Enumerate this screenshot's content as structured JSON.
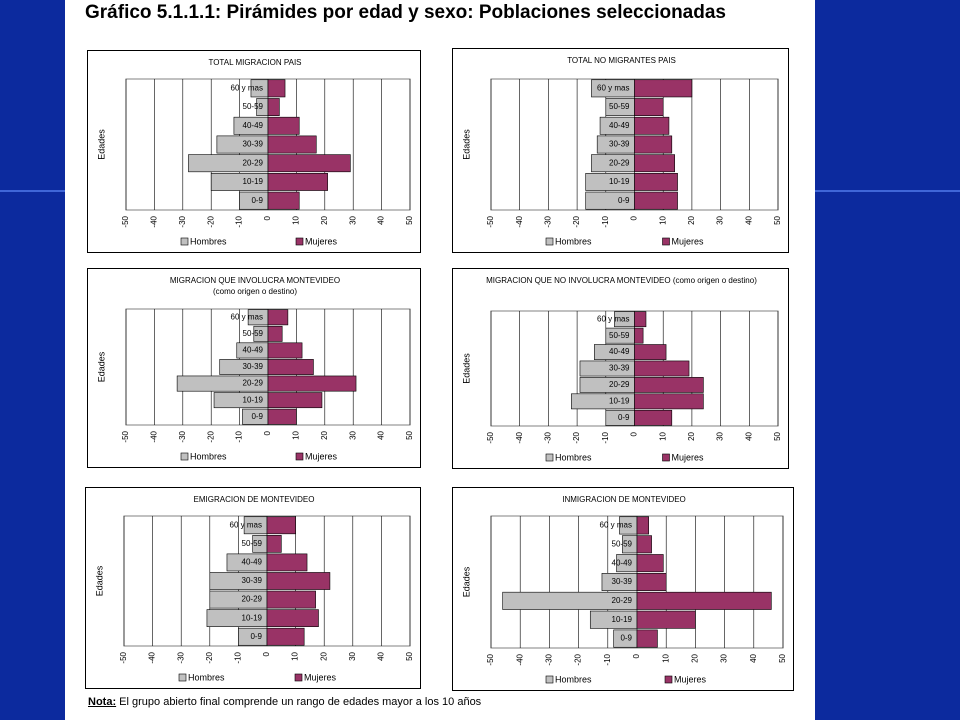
{
  "title": "Gráfico 5.1.1.1: Pirámides por edad y sexo: Poblaciones seleccionadas",
  "chart_data": [
    {
      "type": "bar",
      "orientation": "horizontal",
      "title": "TOTAL MIGRACION PAIS",
      "categories": [
        "0-9",
        "10-19",
        "20-29",
        "30-39",
        "40-49",
        "50-59",
        "60 y mas"
      ],
      "series": [
        {
          "name": "Hombres",
          "color": "#c0c0c0",
          "values": [
            -10,
            -20,
            -28,
            -18,
            -12,
            -4,
            -6
          ]
        },
        {
          "name": "Mujeres",
          "color": "#993366",
          "values": [
            11,
            21,
            29,
            17,
            11,
            4,
            6
          ]
        }
      ],
      "xlim": [
        -50,
        50
      ],
      "xticks": [
        -50,
        -40,
        -30,
        -20,
        -10,
        0,
        10,
        20,
        30,
        40,
        50
      ],
      "ylabel": "Edades",
      "grid": true,
      "legend": "bottom"
    },
    {
      "type": "bar",
      "orientation": "horizontal",
      "title": "TOTAL NO MIGRANTES PAIS",
      "categories": [
        "0-9",
        "10-19",
        "20-29",
        "30-39",
        "40-49",
        "50-59",
        "60 y mas"
      ],
      "series": [
        {
          "name": "Hombres",
          "color": "#c0c0c0",
          "values": [
            -17,
            -17,
            -15,
            -13,
            -12,
            -10,
            -15
          ]
        },
        {
          "name": "Mujeres",
          "color": "#993366",
          "values": [
            15,
            15,
            14,
            13,
            12,
            10,
            20
          ]
        }
      ],
      "xlim": [
        -50,
        50
      ],
      "xticks": [
        -50,
        -40,
        -30,
        -20,
        -10,
        0,
        10,
        20,
        30,
        40,
        50
      ],
      "ylabel": "Edades",
      "grid": true,
      "legend": "bottom"
    },
    {
      "type": "bar",
      "orientation": "horizontal",
      "title": "MIGRACION QUE INVOLUCRA MONTEVIDEO (como origen o destino)",
      "categories": [
        "0-9",
        "10-19",
        "20-29",
        "30-39",
        "40-49",
        "50-59",
        "60 y mas"
      ],
      "series": [
        {
          "name": "Hombres",
          "color": "#c0c0c0",
          "values": [
            -9,
            -19,
            -32,
            -17,
            -11,
            -5,
            -7
          ]
        },
        {
          "name": "Mujeres",
          "color": "#993366",
          "values": [
            10,
            19,
            31,
            16,
            12,
            5,
            7
          ]
        }
      ],
      "xlim": [
        -50,
        50
      ],
      "xticks": [
        -50,
        -40,
        -30,
        -20,
        -10,
        0,
        10,
        20,
        30,
        40,
        50
      ],
      "ylabel": "Edades",
      "grid": true,
      "legend": "bottom"
    },
    {
      "type": "bar",
      "orientation": "horizontal",
      "title": "MIGRACION QUE NO INVOLUCRA MONTEVIDEO (como origen o destino)",
      "categories": [
        "0-9",
        "10-19",
        "20-29",
        "30-39",
        "40-49",
        "50-59",
        "60 y mas"
      ],
      "series": [
        {
          "name": "Hombres",
          "color": "#c0c0c0",
          "values": [
            -10,
            -22,
            -19,
            -19,
            -14,
            -10,
            -7
          ]
        },
        {
          "name": "Mujeres",
          "color": "#993366",
          "values": [
            13,
            24,
            24,
            19,
            11,
            3,
            4
          ]
        }
      ],
      "xlim": [
        -50,
        50
      ],
      "xticks": [
        -50,
        -40,
        -30,
        -20,
        -10,
        0,
        10,
        20,
        30,
        40,
        50
      ],
      "ylabel": "Edades",
      "grid": true,
      "legend": "bottom"
    },
    {
      "type": "bar",
      "orientation": "horizontal",
      "title": "EMIGRACION DE MONTEVIDEO",
      "categories": [
        "0-9",
        "10-19",
        "20-29",
        "30-39",
        "40-49",
        "50-59",
        "60 y mas"
      ],
      "series": [
        {
          "name": "Hombres",
          "color": "#c0c0c0",
          "values": [
            -10,
            -21,
            -20,
            -20,
            -14,
            -5,
            -8
          ]
        },
        {
          "name": "Mujeres",
          "color": "#993366",
          "values": [
            13,
            18,
            17,
            22,
            14,
            5,
            10
          ]
        }
      ],
      "xlim": [
        -50,
        50
      ],
      "xticks": [
        -50,
        -40,
        -30,
        -20,
        -10,
        0,
        10,
        20,
        30,
        40,
        50
      ],
      "ylabel": "Edades",
      "grid": true,
      "legend": "bottom"
    },
    {
      "type": "bar",
      "orientation": "horizontal",
      "title": "INMIGRACION DE MONTEVIDEO",
      "categories": [
        "0-9",
        "10-19",
        "20-29",
        "30-39",
        "40-49",
        "50-59",
        "60 y mas"
      ],
      "series": [
        {
          "name": "Hombres",
          "color": "#c0c0c0",
          "values": [
            -8,
            -16,
            -46,
            -12,
            -7,
            -5,
            -6
          ]
        },
        {
          "name": "Mujeres",
          "color": "#993366",
          "values": [
            7,
            20,
            46,
            10,
            9,
            5,
            4
          ]
        }
      ],
      "xlim": [
        -50,
        50
      ],
      "xticks": [
        -50,
        -40,
        -30,
        -20,
        -10,
        0,
        10,
        20,
        30,
        40,
        50
      ],
      "ylabel": "Edades",
      "grid": true,
      "legend": "bottom"
    }
  ],
  "note": {
    "label": "Nota:",
    "text": "El grupo abierto final comprende un rango de edades mayor a los 10 años"
  }
}
